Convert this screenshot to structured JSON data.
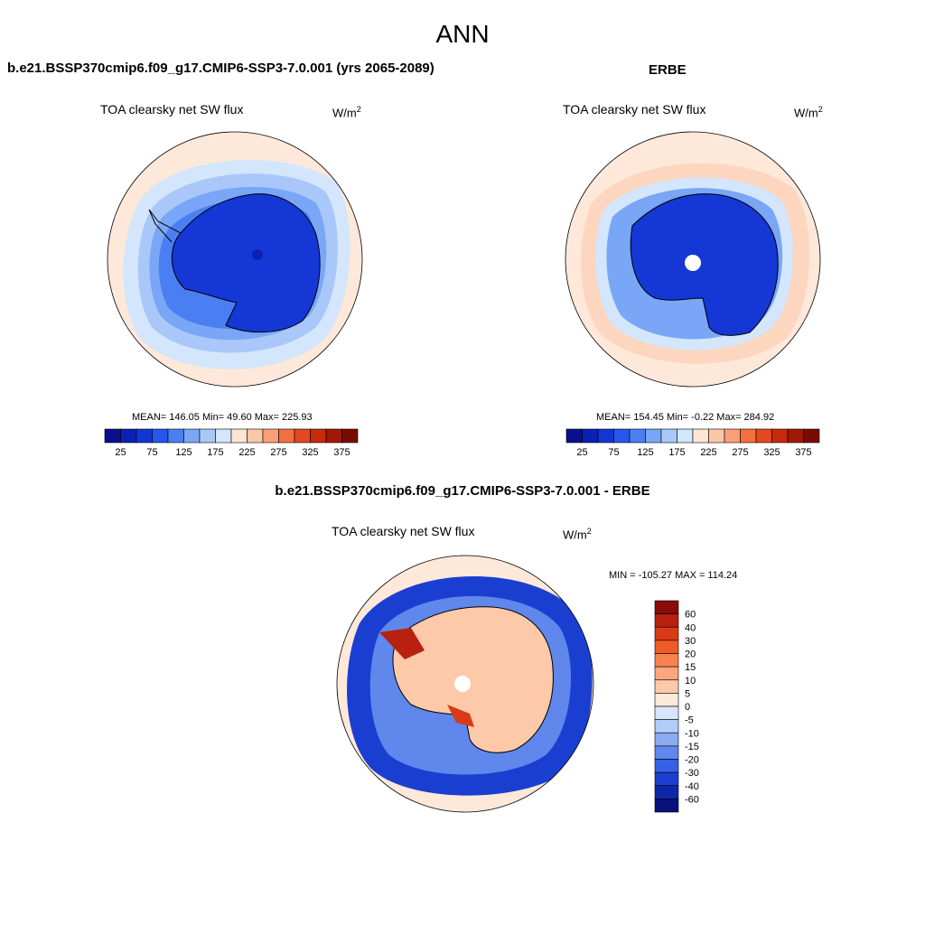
{
  "main_title": "ANN",
  "panels": {
    "model": {
      "title": "b.e21.BSSP370cmip6.f09_g17.CMIP6-SSP3-7.0.001 (yrs 2065-2089)",
      "variable": "TOA clearsky net SW flux",
      "units_base": "W/m",
      "units_exp": "2",
      "stats": "MEAN= 146.05  Min=  49.60  Max= 225.93"
    },
    "obs": {
      "title": "ERBE",
      "variable": "TOA clearsky net SW flux",
      "units_base": "W/m",
      "units_exp": "2",
      "stats": "MEAN= 154.45  Min=  -0.22  Max= 284.92"
    },
    "diff": {
      "title": "b.e21.BSSP370cmip6.f09_g17.CMIP6-SSP3-7.0.001 - ERBE",
      "variable": "TOA clearsky net SW flux",
      "units_base": "W/m",
      "units_exp": "2",
      "stats": "MIN = -105.27 MAX = 114.24"
    }
  },
  "chart_data": [
    {
      "type": "heatmap",
      "name": "model-map",
      "projection": "south-polar-stereographic",
      "title": "TOA clearsky net SW flux",
      "mean": 146.05,
      "min": 49.6,
      "max": 225.93,
      "colorbar_tick_labels": [
        "25",
        "75",
        "125",
        "175",
        "225",
        "275",
        "325",
        "375"
      ],
      "colorbar_colors": [
        "#0a0f8c",
        "#0a21b4",
        "#1236d3",
        "#2657ec",
        "#4a7ff3",
        "#7aa6f7",
        "#a9c8f9",
        "#d4e6fb",
        "#fde5d4",
        "#fcc7a8",
        "#fb9f78",
        "#f4703f",
        "#e4481f",
        "#c72b0c",
        "#a01806",
        "#780c03"
      ]
    },
    {
      "type": "heatmap",
      "name": "obs-map",
      "projection": "south-polar-stereographic",
      "title": "TOA clearsky net SW flux",
      "mean": 154.45,
      "min": -0.22,
      "max": 284.92,
      "colorbar_tick_labels": [
        "25",
        "75",
        "125",
        "175",
        "225",
        "275",
        "325",
        "375"
      ],
      "colorbar_colors": [
        "#0a0f8c",
        "#0a21b4",
        "#1236d3",
        "#2657ec",
        "#4a7ff3",
        "#7aa6f7",
        "#a9c8f9",
        "#d4e6fb",
        "#fde5d4",
        "#fcc7a8",
        "#fb9f78",
        "#f4703f",
        "#e4481f",
        "#c72b0c",
        "#a01806",
        "#780c03"
      ]
    },
    {
      "type": "heatmap",
      "name": "diff-map",
      "projection": "south-polar-stereographic",
      "title": "TOA clearsky net SW flux",
      "min": -105.27,
      "max": 114.24,
      "colorbar_tick_labels": [
        "60",
        "40",
        "30",
        "20",
        "15",
        "10",
        "5",
        "0",
        "-5",
        "-10",
        "-15",
        "-20",
        "-30",
        "-40",
        "-60"
      ],
      "colorbar_colors": [
        "#8a0b0b",
        "#b82010",
        "#d93a16",
        "#f05a26",
        "#f8834e",
        "#fba77e",
        "#fdc9a9",
        "#fde8da",
        "#d8e6fb",
        "#b3cbf7",
        "#8aacf2",
        "#5f87ec",
        "#3461e6",
        "#1a3fd0",
        "#0e27a8",
        "#06127a"
      ]
    }
  ],
  "colors": {
    "ocean_light": "#fde8da",
    "antarctic_blue": "#1437d6",
    "coast_line": "#000000"
  }
}
